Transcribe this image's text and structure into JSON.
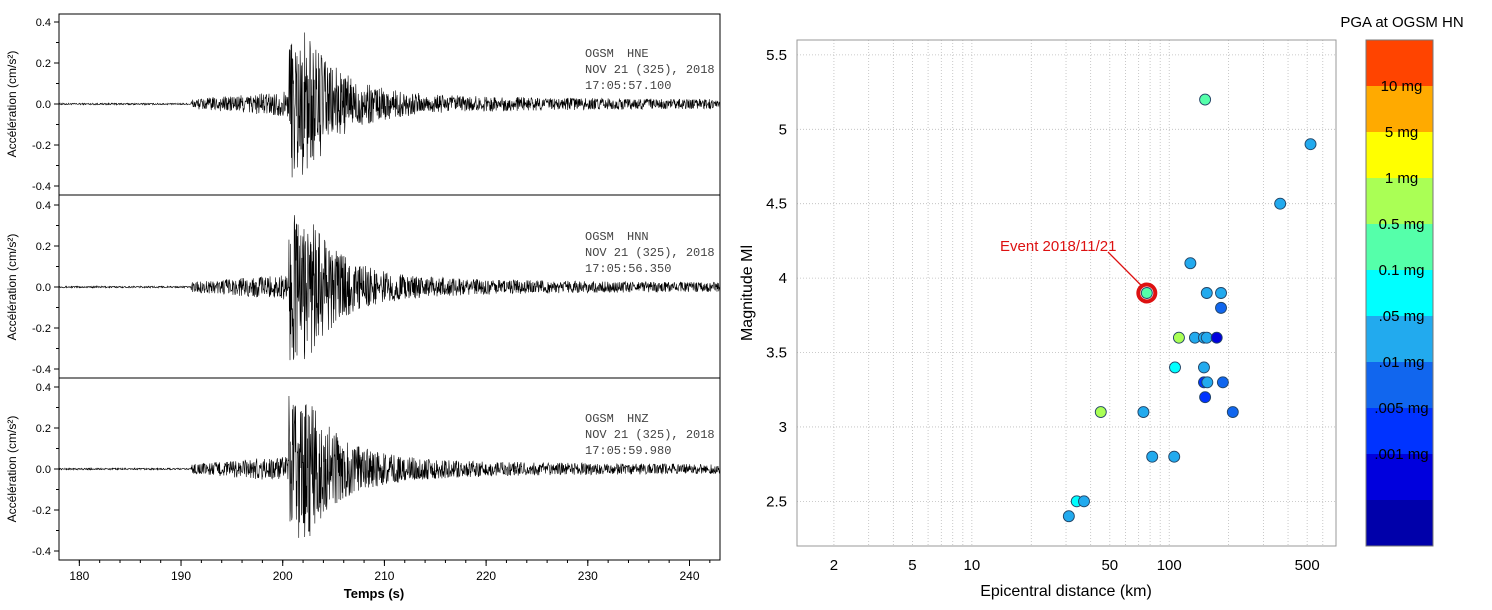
{
  "seismograms": {
    "xlabel": "Temps (s)",
    "ylabel": "Accélération (cm/s²)",
    "x_ticks": [
      "180",
      "190",
      "200",
      "210",
      "220",
      "230",
      "240"
    ],
    "panels": [
      {
        "station": "OGSM",
        "channel": "HNE",
        "date": "NOV 21 (325), 2018",
        "time": "17:05:57.100",
        "y_ticks": [
          "0.4",
          "0.2",
          "0.0",
          "-0.2",
          "-0.4"
        ]
      },
      {
        "station": "OGSM",
        "channel": "HNN",
        "date": "NOV 21 (325), 2018",
        "time": "17:05:56.350",
        "y_ticks": [
          "0.4",
          "0.2",
          "0.0",
          "-0.2",
          "-0.4"
        ]
      },
      {
        "station": "OGSM",
        "channel": "HNZ",
        "date": "NOV 21 (325), 2018",
        "time": "17:05:59.980",
        "y_ticks": [
          "0.4",
          "0.2",
          "0.0",
          "-0.2",
          "-0.4"
        ]
      }
    ]
  },
  "chart_data": {
    "type": "scatter",
    "xlabel": "Epicentral distance (km)",
    "ylabel": "Magnitude Ml",
    "x_scale": "log",
    "xlim": [
      1.3,
      700
    ],
    "ylim": [
      2.2,
      5.6
    ],
    "x_ticks": [
      "2",
      "5",
      "10",
      "50",
      "100",
      "500"
    ],
    "y_ticks": [
      "2.5",
      "3",
      "3.5",
      "4",
      "4.5",
      "5",
      "5.5"
    ],
    "grid": true,
    "colorbar": {
      "title": "PGA at OGSM  HN",
      "labels": [
        "10 mg",
        "5 mg",
        "1 mg",
        "0.5 mg",
        "0.1 mg",
        ".05 mg",
        ".01 mg",
        ".005 mg",
        ".001 mg"
      ],
      "colors": [
        "#ff4400",
        "#ffaa00",
        "#ffff00",
        "#aaff55",
        "#55ffaa",
        "#00ffff",
        "#22aaee",
        "#1166ee",
        "#0033ff",
        "#0000dd",
        "#0000aa"
      ]
    },
    "annotation": {
      "text": "Event 2018/11/21",
      "x": 77,
      "y": 3.9,
      "color": "#dd1111"
    },
    "points": [
      {
        "x": 152,
        "y": 5.2,
        "color": "#55ffaa"
      },
      {
        "x": 520,
        "y": 4.9,
        "color": "#22aaee"
      },
      {
        "x": 365,
        "y": 4.5,
        "color": "#22aaee"
      },
      {
        "x": 128,
        "y": 4.1,
        "color": "#22aaee"
      },
      {
        "x": 77,
        "y": 3.9,
        "color": "#55ffaa",
        "highlight": true
      },
      {
        "x": 155,
        "y": 3.9,
        "color": "#22aaee"
      },
      {
        "x": 183,
        "y": 3.9,
        "color": "#22aaee"
      },
      {
        "x": 183,
        "y": 3.8,
        "color": "#1166ee"
      },
      {
        "x": 112,
        "y": 3.6,
        "color": "#aaff55"
      },
      {
        "x": 135,
        "y": 3.6,
        "color": "#22aaee"
      },
      {
        "x": 150,
        "y": 3.6,
        "color": "#22aaee"
      },
      {
        "x": 155,
        "y": 3.6,
        "color": "#22aaee"
      },
      {
        "x": 174,
        "y": 3.6,
        "color": "#0000dd"
      },
      {
        "x": 107,
        "y": 3.4,
        "color": "#00ffff"
      },
      {
        "x": 150,
        "y": 3.4,
        "color": "#22aaee"
      },
      {
        "x": 150,
        "y": 3.3,
        "color": "#0033ff"
      },
      {
        "x": 156,
        "y": 3.3,
        "color": "#22aaee"
      },
      {
        "x": 187,
        "y": 3.3,
        "color": "#1166ee"
      },
      {
        "x": 152,
        "y": 3.2,
        "color": "#0033ff"
      },
      {
        "x": 45,
        "y": 3.1,
        "color": "#aaff55"
      },
      {
        "x": 74,
        "y": 3.1,
        "color": "#22aaee"
      },
      {
        "x": 210,
        "y": 3.1,
        "color": "#1166ee"
      },
      {
        "x": 82,
        "y": 2.8,
        "color": "#22aaee"
      },
      {
        "x": 106,
        "y": 2.8,
        "color": "#22aaee"
      },
      {
        "x": 34,
        "y": 2.5,
        "color": "#00ffff"
      },
      {
        "x": 37,
        "y": 2.5,
        "color": "#22aaee"
      },
      {
        "x": 31,
        "y": 2.4,
        "color": "#22aaee"
      }
    ]
  }
}
